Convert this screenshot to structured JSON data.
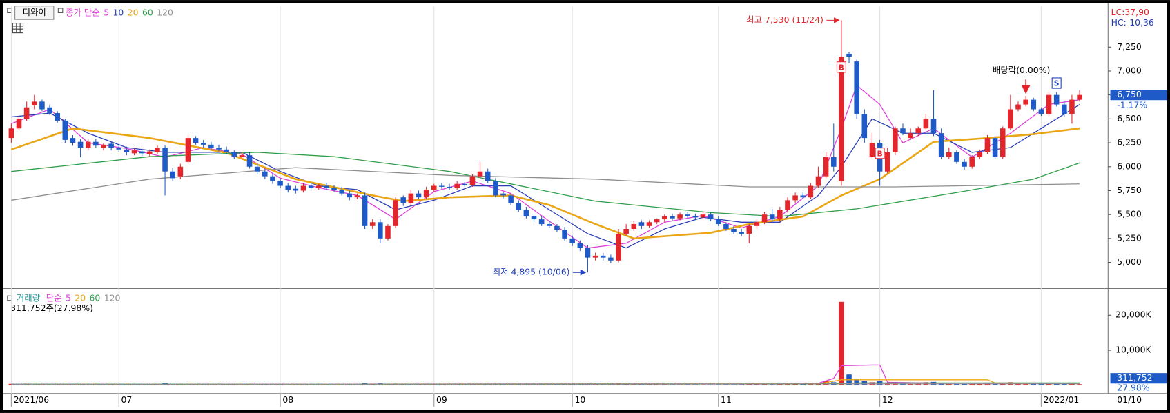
{
  "chart_data": [
    {
      "type": "candlestick",
      "symbol": "디와이",
      "legend_prefix": "종가 단순",
      "lc_label": "LC:37,90",
      "hc_label": "HC:-10,36",
      "up_color": "#e3262c",
      "down_color": "#1f5bc8",
      "xlim": [
        -0.5,
        142.7
      ],
      "ylim": [
        4743,
        7679
      ],
      "yticks": [
        {
          "value": 5000,
          "label": "5,000"
        },
        {
          "value": 5250,
          "label": "5,250"
        },
        {
          "value": 5500,
          "label": "5,500"
        },
        {
          "value": 5750,
          "label": "5,750"
        },
        {
          "value": 6000,
          "label": "6,000"
        },
        {
          "value": 6250,
          "label": "6,250"
        },
        {
          "value": 6500,
          "label": "6,500"
        },
        {
          "value": 6750,
          "label": "6,750"
        },
        {
          "value": 7000,
          "label": "7,000"
        },
        {
          "value": 7250,
          "label": "7,250"
        }
      ],
      "xticks": [
        {
          "value": 0,
          "label": "2021/06"
        },
        {
          "value": 14,
          "label": "07"
        },
        {
          "value": 35,
          "label": "08"
        },
        {
          "value": 55,
          "label": "09"
        },
        {
          "value": 73,
          "label": "10"
        },
        {
          "value": 92,
          "label": "11"
        },
        {
          "value": 113,
          "label": "12"
        },
        {
          "value": 134,
          "label": "2022/01"
        }
      ],
      "last_date": "01/10",
      "open": [
        6300,
        6400,
        6500,
        6640,
        6680,
        6620,
        6560,
        6480,
        6300,
        6260,
        6200,
        6260,
        6200,
        6240,
        6200,
        6180,
        6140,
        6160,
        6130,
        6150,
        6200,
        5950,
        5900,
        6050,
        6300,
        6250,
        6230,
        6200,
        6180,
        6150,
        6100,
        6120,
        6000,
        5950,
        5900,
        5850,
        5800,
        5770,
        5750,
        5800,
        5780,
        5800,
        5780,
        5760,
        5720,
        5680,
        5700,
        5380,
        5420,
        5250,
        5380,
        5680,
        5620,
        5720,
        5680,
        5760,
        5800,
        5790,
        5780,
        5820,
        5810,
        5900,
        5950,
        5850,
        5720,
        5700,
        5620,
        5550,
        5480,
        5450,
        5400,
        5380,
        5340,
        5250,
        5200,
        5150,
        5050,
        5070,
        5050,
        5020,
        5300,
        5350,
        5420,
        5380,
        5420,
        5450,
        5480,
        5460,
        5500,
        5480,
        5470,
        5500,
        5450,
        5400,
        5350,
        5320,
        5300,
        5380,
        5420,
        5500,
        5450,
        5550,
        5650,
        5700,
        5680,
        5800,
        5900,
        6100,
        5850,
        7180,
        7100,
        6550,
        6100,
        6250,
        5950,
        6150,
        6400,
        6300,
        6350,
        6400,
        6500,
        6350,
        6100,
        6150,
        6050,
        6000,
        6100,
        6150,
        6300,
        6100,
        6400,
        6600,
        6650,
        6700,
        6600,
        6550,
        6750,
        6650,
        6550,
        6700
      ],
      "high": [
        6450,
        6530,
        6680,
        6750,
        6700,
        6650,
        6580,
        6500,
        6330,
        6290,
        6290,
        6290,
        6250,
        6260,
        6230,
        6210,
        6200,
        6190,
        6180,
        6220,
        6220,
        5990,
        6030,
        6330,
        6320,
        6280,
        6260,
        6230,
        6210,
        6170,
        6150,
        6150,
        6030,
        5980,
        5930,
        5880,
        5830,
        5800,
        5830,
        5830,
        5820,
        5830,
        5810,
        5790,
        5750,
        5720,
        5730,
        5450,
        5450,
        5400,
        5680,
        5700,
        5760,
        5750,
        5790,
        5820,
        5830,
        5820,
        5850,
        5840,
        5920,
        6050,
        5980,
        5880,
        5740,
        5720,
        5650,
        5580,
        5510,
        5480,
        5430,
        5400,
        5370,
        5280,
        5230,
        5180,
        5100,
        5100,
        5080,
        5350,
        5400,
        5430,
        5440,
        5440,
        5460,
        5500,
        5510,
        5520,
        5530,
        5510,
        5530,
        5520,
        5480,
        5420,
        5380,
        5350,
        5400,
        5450,
        5530,
        5560,
        5580,
        5680,
        5730,
        5730,
        5830,
        6000,
        6150,
        6450,
        7530,
        7200,
        7120,
        6600,
        6350,
        6280,
        6200,
        6420,
        6450,
        6400,
        6420,
        6550,
        6800,
        6400,
        6200,
        6170,
        6080,
        6120,
        6180,
        6330,
        6320,
        6420,
        6750,
        6680,
        6740,
        6720,
        6620,
        6780,
        6780,
        6680,
        6750,
        6800
      ],
      "low": [
        6250,
        6380,
        6480,
        6600,
        6580,
        6540,
        6460,
        6250,
        6220,
        6100,
        6170,
        6200,
        6170,
        6170,
        6150,
        6120,
        6120,
        6110,
        6110,
        6130,
        5700,
        5850,
        5870,
        6030,
        6230,
        6200,
        6180,
        6160,
        6130,
        6080,
        6080,
        5980,
        5920,
        5870,
        5820,
        5780,
        5730,
        5720,
        5730,
        5760,
        5760,
        5760,
        5740,
        5700,
        5650,
        5660,
        5350,
        5350,
        5200,
        5230,
        5360,
        5590,
        5600,
        5660,
        5660,
        5740,
        5770,
        5760,
        5760,
        5790,
        5790,
        5880,
        5830,
        5680,
        5670,
        5600,
        5530,
        5460,
        5420,
        5380,
        5360,
        5320,
        5220,
        5170,
        5120,
        4895,
        5020,
        5020,
        4990,
        5000,
        5280,
        5330,
        5350,
        5360,
        5400,
        5420,
        5440,
        5440,
        5460,
        5450,
        5450,
        5430,
        5380,
        5330,
        5300,
        5270,
        5200,
        5350,
        5400,
        5430,
        5420,
        5520,
        5620,
        5660,
        5660,
        5780,
        5880,
        5950,
        5800,
        7080,
        6500,
        6250,
        6080,
        5800,
        5930,
        6120,
        6330,
        6280,
        6320,
        6380,
        6320,
        6080,
        6080,
        6030,
        5970,
        5980,
        6080,
        6130,
        6080,
        6080,
        6380,
        6580,
        6630,
        6580,
        6530,
        6530,
        6630,
        6520,
        6450,
        6680
      ],
      "close": [
        6400,
        6500,
        6620,
        6680,
        6600,
        6560,
        6480,
        6280,
        6250,
        6200,
        6260,
        6220,
        6230,
        6200,
        6180,
        6150,
        6170,
        6140,
        6160,
        6200,
        5950,
        5880,
        6000,
        6300,
        6250,
        6230,
        6200,
        6180,
        6150,
        6100,
        6120,
        6000,
        5950,
        5900,
        5850,
        5800,
        5760,
        5750,
        5800,
        5780,
        5800,
        5780,
        5760,
        5720,
        5680,
        5700,
        5380,
        5420,
        5250,
        5380,
        5650,
        5620,
        5720,
        5680,
        5760,
        5800,
        5790,
        5780,
        5820,
        5810,
        5900,
        5950,
        5850,
        5700,
        5700,
        5620,
        5550,
        5480,
        5450,
        5400,
        5380,
        5340,
        5250,
        5200,
        5150,
        5050,
        5070,
        5050,
        5020,
        5300,
        5350,
        5400,
        5380,
        5420,
        5450,
        5480,
        5460,
        5500,
        5480,
        5470,
        5500,
        5450,
        5400,
        5350,
        5320,
        5300,
        5380,
        5420,
        5500,
        5450,
        5550,
        5650,
        5700,
        5680,
        5800,
        5900,
        6100,
        6000,
        7150,
        7150,
        6550,
        6300,
        6250,
        5950,
        6150,
        6400,
        6350,
        6350,
        6400,
        6500,
        6350,
        6100,
        6150,
        6050,
        6000,
        6100,
        6150,
        6300,
        6100,
        6400,
        6600,
        6650,
        6700,
        6600,
        6550,
        6750,
        6650,
        6550,
        6700,
        6750
      ],
      "series": [
        {
          "name": "5",
          "color": "#dd3fd8",
          "width": 1.2,
          "x": [
            0,
            5,
            10,
            15,
            20,
            25,
            30,
            35,
            40,
            45,
            50,
            55,
            60,
            65,
            70,
            75,
            80,
            85,
            90,
            95,
            100,
            105,
            108,
            110,
            113,
            116,
            120,
            125,
            130,
            135,
            139
          ],
          "values": [
            6450,
            6600,
            6250,
            6190,
            6100,
            6200,
            6130,
            5880,
            5780,
            5700,
            5450,
            5740,
            5850,
            5720,
            5430,
            5150,
            5200,
            5420,
            5490,
            5360,
            5480,
            5800,
            6400,
            6850,
            6650,
            6250,
            6400,
            6100,
            6350,
            6650,
            6700
          ]
        },
        {
          "name": "10",
          "color": "#2a3fb8",
          "width": 1.2,
          "x": [
            0,
            5,
            10,
            15,
            20,
            25,
            30,
            35,
            40,
            45,
            50,
            55,
            60,
            65,
            70,
            75,
            80,
            85,
            90,
            95,
            100,
            105,
            108,
            112,
            116,
            120,
            125,
            130,
            135,
            139
          ],
          "values": [
            6520,
            6560,
            6350,
            6200,
            6150,
            6150,
            6150,
            5950,
            5800,
            5760,
            5550,
            5650,
            5800,
            5800,
            5550,
            5300,
            5150,
            5350,
            5470,
            5420,
            5420,
            5700,
            6000,
            6500,
            6350,
            6350,
            6150,
            6200,
            6450,
            6650
          ]
        },
        {
          "name": "20",
          "color": "#eaa614",
          "width": 2.4,
          "x": [
            0,
            8,
            18,
            28,
            37,
            47,
            51,
            57,
            65,
            70,
            76,
            81,
            91,
            96,
            103,
            108,
            113,
            120,
            127,
            133,
            139
          ],
          "values": [
            6180,
            6400,
            6300,
            6145,
            5870,
            5700,
            5640,
            5680,
            5700,
            5600,
            5400,
            5250,
            5310,
            5400,
            5480,
            5700,
            5870,
            6260,
            6300,
            6340,
            6400
          ]
        },
        {
          "name": "60",
          "color": "#2e9e48",
          "width": 1.2,
          "x": [
            0,
            18,
            32,
            42,
            57,
            76,
            91,
            100,
            110,
            123,
            133,
            139
          ],
          "values": [
            5950,
            6105,
            6150,
            6105,
            5950,
            5640,
            5520,
            5480,
            5560,
            5730,
            5870,
            6040
          ]
        },
        {
          "name": "120",
          "color": "#8e8e8e",
          "width": 1.2,
          "x": [
            0,
            18,
            37,
            57,
            76,
            96,
            115,
            139
          ],
          "values": [
            5650,
            5870,
            5990,
            5910,
            5870,
            5790,
            5790,
            5820
          ]
        }
      ],
      "annotations": [
        {
          "text": "최고 7,530 (11/24)",
          "x": 108,
          "y": 7530,
          "color": "#e3262c"
        },
        {
          "text": "최저 4,895 (10/06)",
          "x": 75,
          "y": 4895,
          "color": "#1f3fb8"
        }
      ],
      "dividend": {
        "text": "배당락(0.00%)",
        "x": 132
      },
      "signals": [
        {
          "text": "B",
          "x": 108,
          "color": "#e3262c"
        },
        {
          "text": "B",
          "x": 113,
          "color": "#e3262c"
        },
        {
          "text": "S",
          "x": 136,
          "color": "#1f3fb8"
        }
      ],
      "last_price": {
        "value": 6750,
        "label": "6,750",
        "change": "-1.17%"
      }
    },
    {
      "type": "bar",
      "label": "거래량",
      "label_color": "#2a9d9d",
      "legend_prefix": "단순",
      "info": "311,752주(27.98%)",
      "ylim": [
        -850,
        25300
      ],
      "yticks": [
        {
          "value": 10000,
          "label": "10,000K"
        },
        {
          "value": 20000,
          "label": "20,000K"
        }
      ],
      "values": [
        420,
        380,
        500,
        350,
        300,
        260,
        280,
        450,
        300,
        250,
        220,
        200,
        210,
        190,
        180,
        170,
        200,
        180,
        160,
        220,
        600,
        300,
        250,
        400,
        300,
        220,
        200,
        180,
        190,
        210,
        200,
        250,
        230,
        210,
        220,
        200,
        190,
        180,
        200,
        170,
        160,
        170,
        180,
        190,
        200,
        180,
        700,
        500,
        650,
        400,
        500,
        300,
        280,
        260,
        250,
        240,
        230,
        220,
        250,
        230,
        300,
        350,
        280,
        300,
        250,
        240,
        230,
        250,
        260,
        240,
        230,
        250,
        280,
        260,
        270,
        380,
        300,
        250,
        240,
        600,
        350,
        300,
        280,
        270,
        260,
        250,
        240,
        230,
        250,
        240,
        230,
        220,
        240,
        250,
        230,
        260,
        350,
        300,
        280,
        260,
        400,
        450,
        380,
        400,
        500,
        600,
        1300,
        900,
        23830,
        3100,
        1900,
        1200,
        900,
        1300,
        700,
        800,
        600,
        500,
        600,
        900,
        1000,
        700,
        500,
        450,
        400,
        420,
        380,
        500,
        450,
        700,
        900,
        700,
        650,
        500,
        480,
        600,
        700,
        550,
        600,
        311.752
      ],
      "last_label": "311,752",
      "ratio": "27.98%",
      "series": [
        {
          "name": "5",
          "color": "#dd3fd8",
          "x": [
            0,
            100,
            105,
            107,
            108,
            112,
            113,
            114,
            120,
            139
          ],
          "values": [
            350,
            380,
            600,
            2000,
            5600,
            5800,
            5800,
            900,
            650,
            600
          ]
        },
        {
          "name": "20",
          "color": "#eaa614",
          "x": [
            0,
            105,
            108,
            110,
            127,
            128,
            139
          ],
          "values": [
            320,
            420,
            1600,
            1600,
            1600,
            700,
            600
          ]
        },
        {
          "name": "60",
          "color": "#2e9e48",
          "x": [
            0,
            105,
            110,
            139
          ],
          "values": [
            330,
            380,
            700,
            700
          ]
        },
        {
          "name": "120",
          "color": "#8e8e8e",
          "x": [
            0,
            139
          ],
          "values": [
            320,
            450
          ]
        }
      ]
    }
  ]
}
